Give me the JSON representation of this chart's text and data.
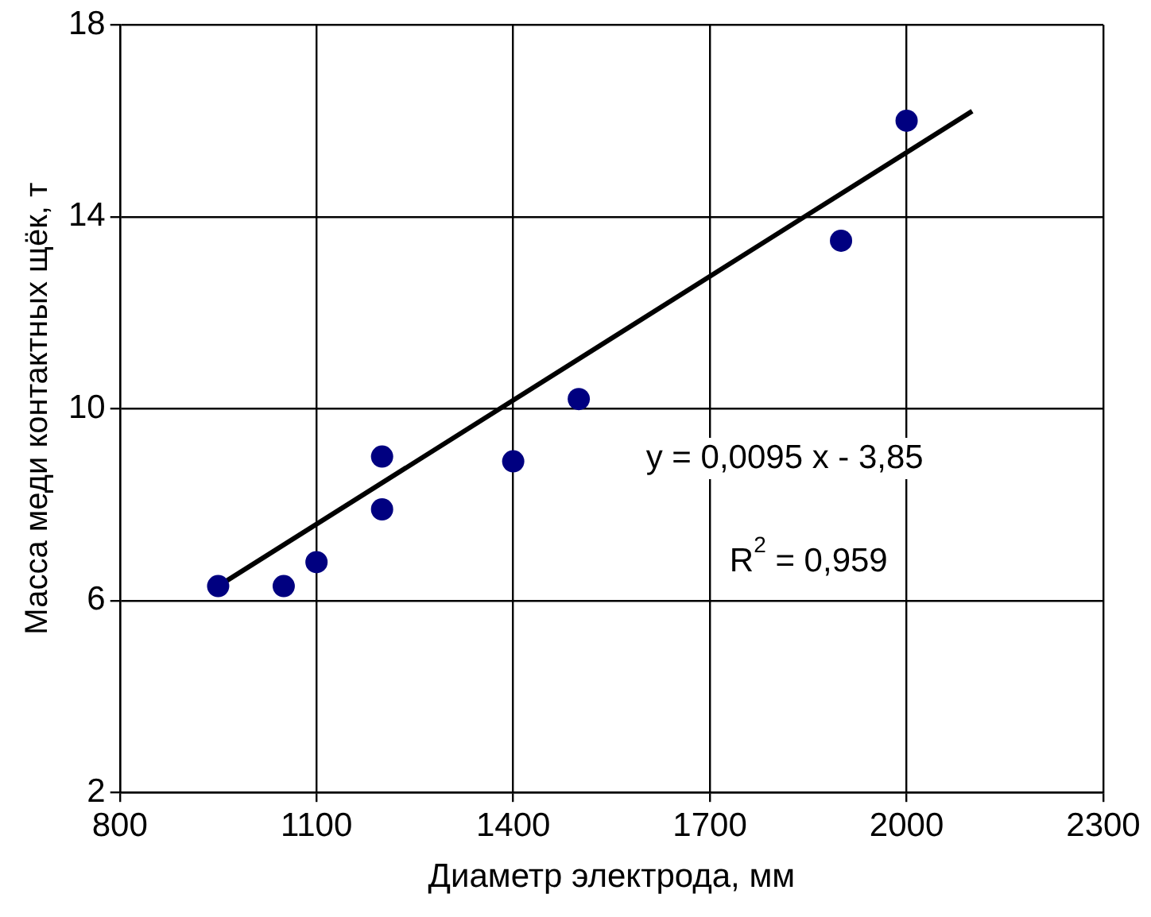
{
  "chart_data": {
    "type": "scatter",
    "xlabel": "Диаметр электрода, мм",
    "ylabel": "Масса меди контактных щёк, т",
    "x": [
      950,
      1050,
      1100,
      1200,
      1200,
      1400,
      1500,
      1900,
      2000
    ],
    "series": [
      {
        "color": "#000080",
        "marker": "circle",
        "values": [
          6.3,
          6.3,
          6.8,
          9.0,
          7.9,
          8.9,
          10.2,
          13.5,
          16.0
        ]
      },
      {
        "type": "line",
        "color": "#000000",
        "marker": "none",
        "line_style": "solid",
        "x": [
          950,
          2100
        ],
        "values": [
          6.3,
          16.2
        ]
      }
    ],
    "xlim": [
      800,
      2300
    ],
    "xticks": [
      800,
      1100,
      1400,
      1700,
      2000,
      2300
    ],
    "ylim": [
      2,
      18
    ],
    "yticks": [
      2,
      6,
      10,
      14,
      18
    ],
    "grid": true,
    "legend": false,
    "annotations": [
      "y = 0,0095 x - 3,85",
      "R$^{2}$ = 0,959"
    ]
  }
}
